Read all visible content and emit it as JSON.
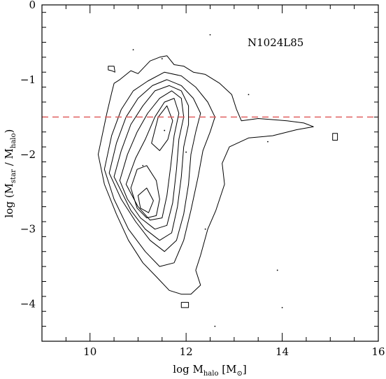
{
  "chart_data": {
    "type": "contour",
    "annotation": "N1024L85",
    "xlabel": {
      "main": "log M",
      "sub": "halo",
      "unit_open": " [M",
      "unit_sub": "⊙",
      "unit_close": "]"
    },
    "ylabel": {
      "pre": "log (M",
      "sub1": "star",
      "mid": " / M",
      "sub2": "halo",
      "post": ")"
    },
    "xlim": [
      9,
      16
    ],
    "ylim": [
      -4.5,
      0
    ],
    "x_major_ticks": [
      10,
      12,
      14,
      16
    ],
    "y_major_ticks": [
      0,
      -1,
      -2,
      -3,
      -4
    ],
    "x_tick_labels": [
      "10",
      "12",
      "14",
      "16"
    ],
    "y_tick_labels": [
      "0",
      "−1",
      "−2",
      "−3",
      "−4"
    ],
    "reference_line": {
      "y": -1.5,
      "color": "#e06060",
      "style": "dashed"
    },
    "contours": [
      [
        [
          10.17,
          -2.0
        ],
        [
          10.35,
          -1.45
        ],
        [
          10.45,
          -1.18
        ],
        [
          10.5,
          -1.05
        ],
        [
          10.62,
          -1.0
        ],
        [
          10.85,
          -0.88
        ],
        [
          11.0,
          -0.92
        ],
        [
          11.25,
          -0.75
        ],
        [
          11.45,
          -0.7
        ],
        [
          11.6,
          -0.68
        ],
        [
          11.75,
          -0.8
        ],
        [
          11.95,
          -0.82
        ],
        [
          12.15,
          -0.9
        ],
        [
          12.4,
          -0.93
        ],
        [
          12.7,
          -1.05
        ],
        [
          12.95,
          -1.2
        ],
        [
          13.05,
          -1.4
        ],
        [
          13.15,
          -1.55
        ],
        [
          13.5,
          -1.52
        ],
        [
          14.1,
          -1.55
        ],
        [
          14.45,
          -1.58
        ],
        [
          14.65,
          -1.63
        ],
        [
          14.3,
          -1.67
        ],
        [
          13.8,
          -1.75
        ],
        [
          13.3,
          -1.78
        ],
        [
          12.9,
          -1.9
        ],
        [
          12.75,
          -2.12
        ],
        [
          12.8,
          -2.4
        ],
        [
          12.62,
          -2.75
        ],
        [
          12.45,
          -3.0
        ],
        [
          12.3,
          -3.35
        ],
        [
          12.2,
          -3.55
        ],
        [
          12.3,
          -3.75
        ],
        [
          12.1,
          -3.87
        ],
        [
          11.9,
          -3.87
        ],
        [
          11.65,
          -3.82
        ],
        [
          11.4,
          -3.65
        ],
        [
          11.1,
          -3.45
        ],
        [
          10.8,
          -3.15
        ],
        [
          10.55,
          -2.8
        ],
        [
          10.3,
          -2.4
        ],
        [
          10.17,
          -2.0
        ]
      ],
      [
        [
          10.3,
          -2.2
        ],
        [
          10.45,
          -1.75
        ],
        [
          10.65,
          -1.4
        ],
        [
          10.9,
          -1.15
        ],
        [
          11.2,
          -1.02
        ],
        [
          11.55,
          -0.9
        ],
        [
          11.9,
          -0.95
        ],
        [
          12.2,
          -1.1
        ],
        [
          12.45,
          -1.3
        ],
        [
          12.6,
          -1.5
        ],
        [
          12.5,
          -1.7
        ],
        [
          12.35,
          -1.95
        ],
        [
          12.25,
          -2.3
        ],
        [
          12.1,
          -2.75
        ],
        [
          11.95,
          -3.15
        ],
        [
          11.75,
          -3.45
        ],
        [
          11.45,
          -3.5
        ],
        [
          11.15,
          -3.3
        ],
        [
          10.8,
          -3.0
        ],
        [
          10.5,
          -2.6
        ],
        [
          10.3,
          -2.2
        ]
      ],
      [
        [
          10.4,
          -2.25
        ],
        [
          10.55,
          -1.85
        ],
        [
          10.75,
          -1.5
        ],
        [
          11.0,
          -1.25
        ],
        [
          11.3,
          -1.08
        ],
        [
          11.6,
          -1.0
        ],
        [
          11.9,
          -1.08
        ],
        [
          12.15,
          -1.25
        ],
        [
          12.3,
          -1.45
        ],
        [
          12.2,
          -1.7
        ],
        [
          12.1,
          -2.0
        ],
        [
          12.05,
          -2.4
        ],
        [
          11.95,
          -2.8
        ],
        [
          11.8,
          -3.15
        ],
        [
          11.55,
          -3.3
        ],
        [
          11.25,
          -3.15
        ],
        [
          10.95,
          -2.9
        ],
        [
          10.65,
          -2.6
        ],
        [
          10.4,
          -2.25
        ]
      ],
      [
        [
          10.5,
          -2.3
        ],
        [
          10.65,
          -1.95
        ],
        [
          10.85,
          -1.6
        ],
        [
          11.1,
          -1.35
        ],
        [
          11.35,
          -1.15
        ],
        [
          11.65,
          -1.08
        ],
        [
          11.9,
          -1.15
        ],
        [
          12.05,
          -1.35
        ],
        [
          12.05,
          -1.6
        ],
        [
          11.95,
          -1.9
        ],
        [
          11.9,
          -2.3
        ],
        [
          11.82,
          -2.7
        ],
        [
          11.7,
          -3.05
        ],
        [
          11.45,
          -3.15
        ],
        [
          11.15,
          -3.0
        ],
        [
          10.85,
          -2.75
        ],
        [
          10.5,
          -2.3
        ]
      ],
      [
        [
          10.62,
          -2.35
        ],
        [
          10.78,
          -2.0
        ],
        [
          10.98,
          -1.7
        ],
        [
          11.2,
          -1.45
        ],
        [
          11.45,
          -1.25
        ],
        [
          11.7,
          -1.15
        ],
        [
          11.9,
          -1.25
        ],
        [
          11.95,
          -1.5
        ],
        [
          11.85,
          -1.8
        ],
        [
          11.8,
          -2.2
        ],
        [
          11.72,
          -2.65
        ],
        [
          11.6,
          -2.95
        ],
        [
          11.35,
          -3.0
        ],
        [
          11.05,
          -2.85
        ],
        [
          10.78,
          -2.6
        ],
        [
          10.62,
          -2.35
        ]
      ],
      [
        [
          10.75,
          -2.4
        ],
        [
          10.95,
          -2.05
        ],
        [
          11.15,
          -1.8
        ],
        [
          11.35,
          -1.5
        ],
        [
          11.55,
          -1.3
        ],
        [
          11.75,
          -1.25
        ],
        [
          11.85,
          -1.45
        ],
        [
          11.75,
          -1.75
        ],
        [
          11.68,
          -2.15
        ],
        [
          11.6,
          -2.55
        ],
        [
          11.5,
          -2.85
        ],
        [
          11.25,
          -2.88
        ],
        [
          11.0,
          -2.7
        ],
        [
          10.75,
          -2.4
        ]
      ],
      [
        [
          11.28,
          -1.85
        ],
        [
          11.42,
          -1.5
        ],
        [
          11.6,
          -1.35
        ],
        [
          11.72,
          -1.55
        ],
        [
          11.62,
          -1.8
        ],
        [
          11.45,
          -1.95
        ],
        [
          11.28,
          -1.85
        ]
      ],
      [
        [
          10.85,
          -2.45
        ],
        [
          10.98,
          -2.2
        ],
        [
          11.18,
          -2.15
        ],
        [
          11.38,
          -2.35
        ],
        [
          11.45,
          -2.6
        ],
        [
          11.38,
          -2.82
        ],
        [
          11.18,
          -2.85
        ],
        [
          10.98,
          -2.72
        ],
        [
          10.85,
          -2.45
        ]
      ],
      [
        [
          11.0,
          -2.55
        ],
        [
          11.18,
          -2.45
        ],
        [
          11.32,
          -2.62
        ],
        [
          11.22,
          -2.78
        ],
        [
          11.05,
          -2.72
        ],
        [
          11.0,
          -2.55
        ]
      ],
      [
        [
          10.38,
          -0.82
        ],
        [
          10.5,
          -0.82
        ],
        [
          10.52,
          -0.9
        ],
        [
          10.45,
          -0.88
        ],
        [
          10.38,
          -0.87
        ],
        [
          10.38,
          -0.82
        ]
      ],
      [
        [
          15.05,
          -1.72
        ],
        [
          15.15,
          -1.72
        ],
        [
          15.15,
          -1.81
        ],
        [
          15.05,
          -1.81
        ],
        [
          15.05,
          -1.72
        ]
      ],
      [
        [
          11.9,
          -3.98
        ],
        [
          12.05,
          -3.98
        ],
        [
          12.05,
          -4.05
        ],
        [
          11.9,
          -4.05
        ],
        [
          11.9,
          -3.98
        ]
      ]
    ],
    "points": [
      [
        10.9,
        -0.6
      ],
      [
        11.5,
        -0.72
      ],
      [
        12.5,
        -0.4
      ],
      [
        13.3,
        -1.2
      ],
      [
        13.7,
        -1.83
      ],
      [
        13.9,
        -3.55
      ],
      [
        14.0,
        -4.05
      ],
      [
        12.6,
        -4.3
      ],
      [
        12.4,
        -3.0
      ],
      [
        11.1,
        -2.15
      ],
      [
        11.55,
        -1.68
      ],
      [
        12.0,
        -1.97
      ]
    ]
  }
}
